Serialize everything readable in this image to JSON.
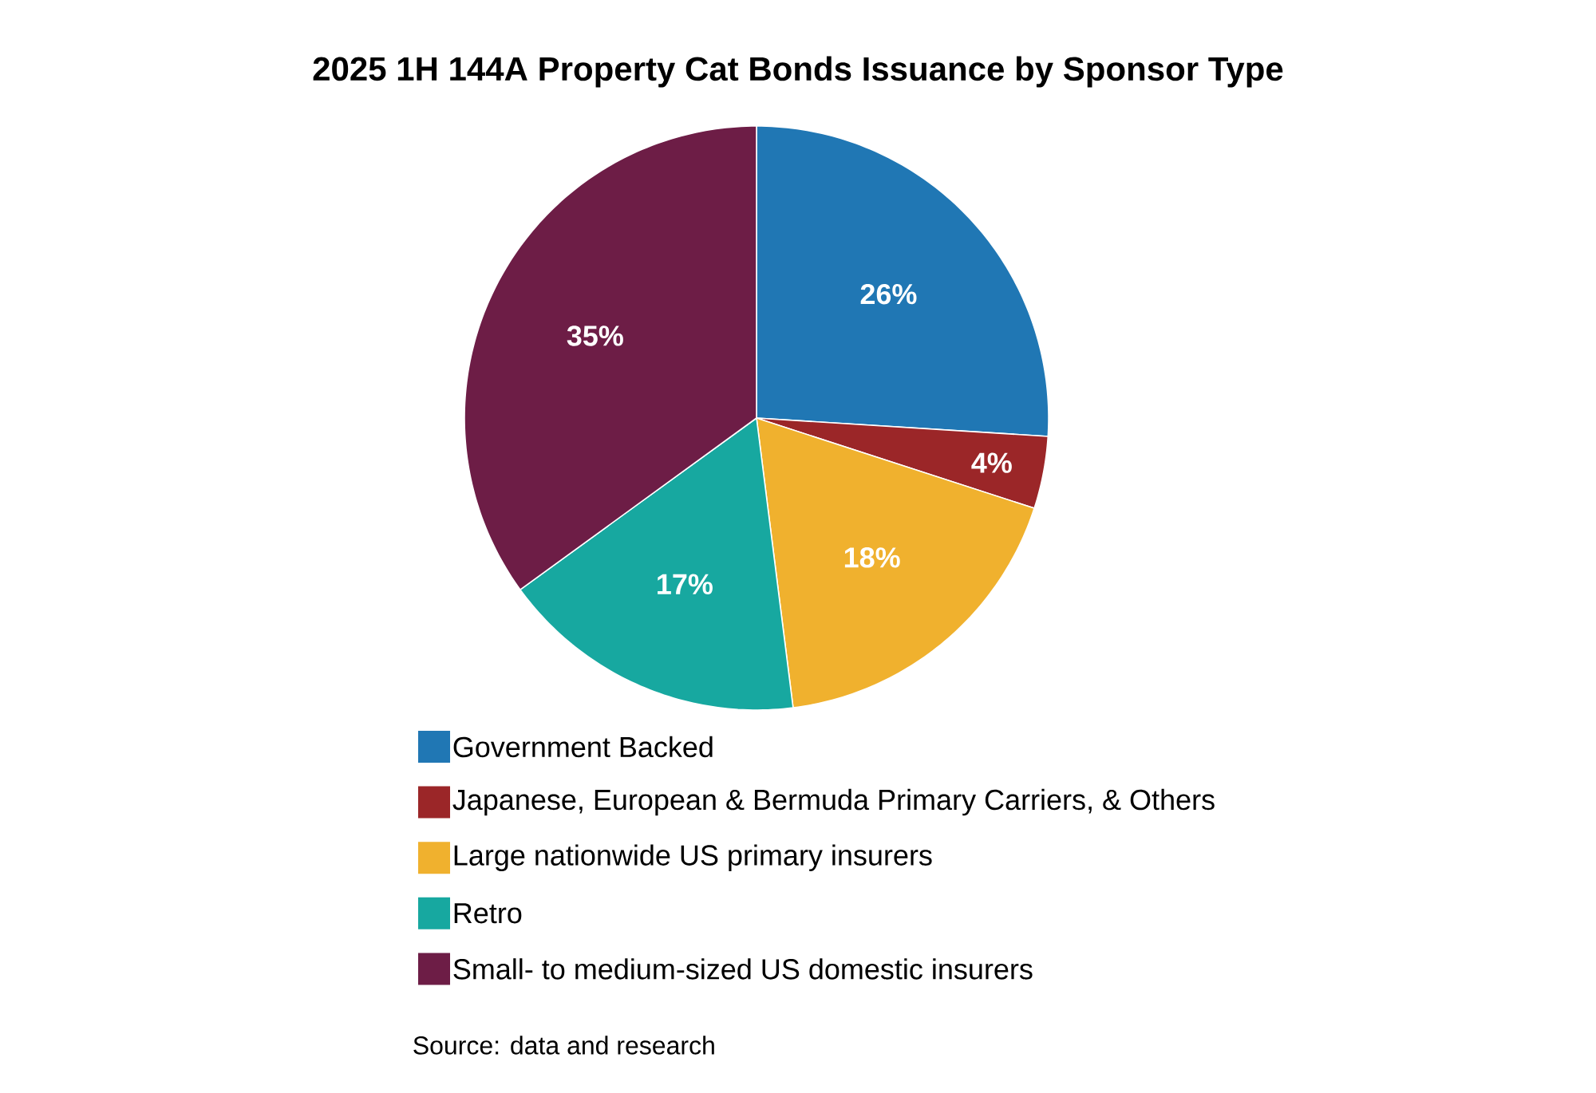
{
  "chart_data": {
    "type": "pie",
    "title": "2025 1H 144A Property Cat Bonds Issuance by Sponsor Type",
    "categories": [
      "Government Backed",
      "Japanese, European & Bermuda Primary Carriers, & Others",
      "Large nationwide US primary insurers",
      "Retro",
      "Small- to medium-sized US domestic insurers"
    ],
    "values": [
      26,
      4,
      18,
      17,
      35
    ],
    "colors": [
      "#2077b4",
      "#9b2628",
      "#f0b12e",
      "#17a8a0",
      "#6d1d46"
    ],
    "value_labels": [
      "26%",
      "4%",
      "18%",
      "17%",
      "35%"
    ],
    "legend": "bottom",
    "annotations": [
      "Source: data and research"
    ]
  }
}
